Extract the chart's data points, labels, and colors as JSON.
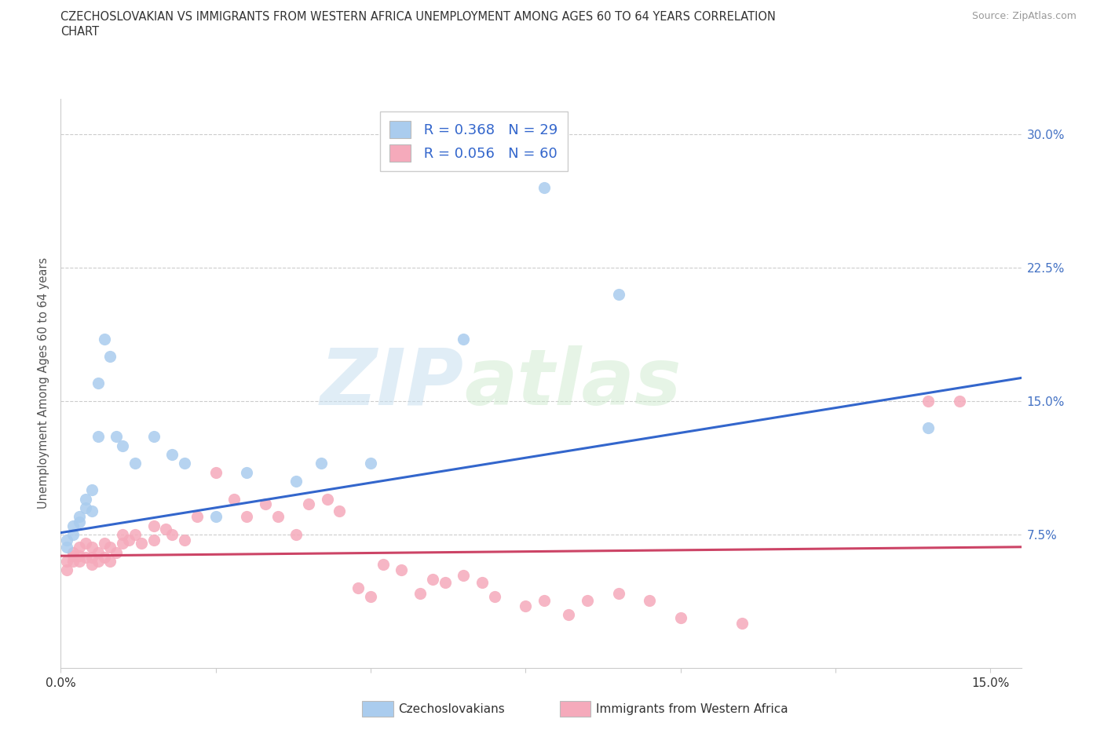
{
  "title_line1": "CZECHOSLOVAKIAN VS IMMIGRANTS FROM WESTERN AFRICA UNEMPLOYMENT AMONG AGES 60 TO 64 YEARS CORRELATION",
  "title_line2": "CHART",
  "source": "Source: ZipAtlas.com",
  "ylabel": "Unemployment Among Ages 60 to 64 years",
  "xlim": [
    0.0,
    0.155
  ],
  "ylim": [
    0.0,
    0.32
  ],
  "xticks": [
    0.0,
    0.025,
    0.05,
    0.075,
    0.1,
    0.125,
    0.15
  ],
  "yticks": [
    0.075,
    0.15,
    0.225,
    0.3
  ],
  "xticklabels": [
    "0.0%",
    "",
    "",
    "",
    "",
    "",
    "15.0%"
  ],
  "yticklabels": [
    "7.5%",
    "15.0%",
    "22.5%",
    "30.0%"
  ],
  "legend_r1": "R = 0.368",
  "legend_n1": "N = 29",
  "legend_r2": "R = 0.056",
  "legend_n2": "N = 60",
  "color_czech": "#aaccee",
  "color_western": "#f5aabb",
  "color_line_czech": "#3366cc",
  "color_line_western": "#cc4466",
  "watermark_zip": "ZIP",
  "watermark_atlas": "atlas",
  "czech_x": [
    0.001,
    0.001,
    0.002,
    0.002,
    0.003,
    0.003,
    0.004,
    0.004,
    0.005,
    0.005,
    0.006,
    0.006,
    0.007,
    0.008,
    0.009,
    0.01,
    0.012,
    0.015,
    0.018,
    0.02,
    0.025,
    0.03,
    0.038,
    0.042,
    0.05,
    0.065,
    0.078,
    0.09,
    0.14
  ],
  "czech_y": [
    0.068,
    0.072,
    0.075,
    0.08,
    0.082,
    0.085,
    0.09,
    0.095,
    0.088,
    0.1,
    0.13,
    0.16,
    0.185,
    0.175,
    0.13,
    0.125,
    0.115,
    0.13,
    0.12,
    0.115,
    0.085,
    0.11,
    0.105,
    0.115,
    0.115,
    0.185,
    0.27,
    0.21,
    0.135
  ],
  "western_x": [
    0.001,
    0.001,
    0.002,
    0.002,
    0.002,
    0.003,
    0.003,
    0.003,
    0.004,
    0.004,
    0.005,
    0.005,
    0.005,
    0.006,
    0.006,
    0.007,
    0.007,
    0.008,
    0.008,
    0.009,
    0.01,
    0.01,
    0.011,
    0.012,
    0.013,
    0.015,
    0.015,
    0.017,
    0.018,
    0.02,
    0.022,
    0.025,
    0.028,
    0.03,
    0.033,
    0.035,
    0.038,
    0.04,
    0.043,
    0.045,
    0.048,
    0.05,
    0.052,
    0.055,
    0.058,
    0.06,
    0.062,
    0.065,
    0.068,
    0.07,
    0.075,
    0.078,
    0.082,
    0.085,
    0.09,
    0.095,
    0.1,
    0.11,
    0.14,
    0.145
  ],
  "western_y": [
    0.055,
    0.06,
    0.06,
    0.063,
    0.065,
    0.06,
    0.063,
    0.068,
    0.062,
    0.07,
    0.058,
    0.062,
    0.068,
    0.06,
    0.065,
    0.062,
    0.07,
    0.06,
    0.068,
    0.065,
    0.07,
    0.075,
    0.072,
    0.075,
    0.07,
    0.08,
    0.072,
    0.078,
    0.075,
    0.072,
    0.085,
    0.11,
    0.095,
    0.085,
    0.092,
    0.085,
    0.075,
    0.092,
    0.095,
    0.088,
    0.045,
    0.04,
    0.058,
    0.055,
    0.042,
    0.05,
    0.048,
    0.052,
    0.048,
    0.04,
    0.035,
    0.038,
    0.03,
    0.038,
    0.042,
    0.038,
    0.028,
    0.025,
    0.15,
    0.15
  ],
  "trend_czech_x0": 0.0,
  "trend_czech_y0": 0.076,
  "trend_czech_x1": 0.155,
  "trend_czech_y1": 0.163,
  "trend_western_x0": 0.0,
  "trend_western_y0": 0.063,
  "trend_western_x1": 0.155,
  "trend_western_y1": 0.068
}
